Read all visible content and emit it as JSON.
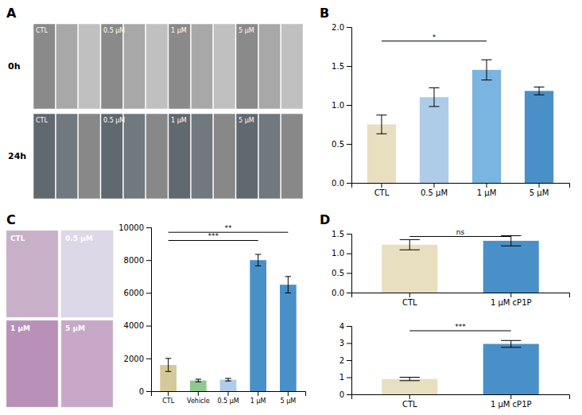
{
  "chart_data": [
    {
      "type": "image",
      "title": "A",
      "categories": [
        "CTL",
        "0.5 μM",
        "1 μM",
        "5 μM"
      ],
      "annotations": [
        "0h",
        "24h"
      ]
    },
    {
      "type": "bar",
      "title": "B",
      "categories": [
        "CTL",
        "0.5 μM",
        "1 μM",
        "5 μM"
      ],
      "values": [
        0.75,
        1.1,
        1.45,
        1.18
      ],
      "errors": [
        0.12,
        0.12,
        0.13,
        0.05
      ],
      "colors": [
        "#e8dfc0",
        "#aecce8",
        "#7ab4e0",
        "#4a90c8"
      ],
      "ylim": [
        0,
        2.0
      ],
      "yticks": [
        {
          "value": 0,
          "label": "0.0"
        },
        0.5,
        {
          "value": 1,
          "label": "1.0"
        },
        1.5,
        {
          "value": 2,
          "label": "2.0"
        }
      ],
      "annotations": [
        {
          "text": "*",
          "from": 0,
          "to": 2,
          "y": 1.82
        }
      ]
    },
    {
      "type": "image",
      "title": "C",
      "categories": [
        "CTL",
        "0.5 μM",
        "1 μM",
        "5 μM"
      ]
    },
    {
      "type": "bar",
      "categories": [
        "CTL",
        "Vehicle",
        "0.5 μM",
        "1 μM",
        "5 μM"
      ],
      "values": [
        1600,
        650,
        700,
        8000,
        6500
      ],
      "errors": [
        400,
        80,
        80,
        350,
        500
      ],
      "colors": [
        "#d4c99a",
        "#90c890",
        "#aecce8",
        "#4a90c8",
        "#4a90c8"
      ],
      "ylim": [
        0,
        10000
      ],
      "yticks": [
        0,
        2000,
        4000,
        6000,
        8000,
        10000
      ],
      "annotations": [
        {
          "text": "***",
          "from": 0,
          "to": 3,
          "y": 9200
        },
        {
          "text": "**",
          "from": 0,
          "to": 4,
          "y": 9700
        }
      ]
    },
    {
      "type": "bar",
      "title": "D",
      "categories": [
        "CTL",
        "1 μM cP1P"
      ],
      "values": [
        1.22,
        1.32
      ],
      "errors": [
        0.13,
        0.13
      ],
      "colors": [
        "#e8dfc0",
        "#4a90c8"
      ],
      "ylim": [
        0,
        1.5
      ],
      "yticks": [
        {
          "value": 0,
          "label": "0.0"
        },
        0.5,
        {
          "value": 1,
          "label": "1.0"
        },
        1.5
      ],
      "annotations": [
        {
          "text": "ns",
          "from": 0,
          "to": 1,
          "y": 1.43
        }
      ]
    },
    {
      "type": "bar",
      "categories": [
        "CTL",
        "1 μM cP1P"
      ],
      "values": [
        0.9,
        2.95
      ],
      "errors": [
        0.1,
        0.2
      ],
      "colors": [
        "#e8dfc0",
        "#4a90c8"
      ],
      "ylim": [
        0,
        4
      ],
      "yticks": [
        0,
        1,
        2,
        3,
        4
      ],
      "annotations": [
        {
          "text": "***",
          "from": 0,
          "to": 1,
          "y": 3.72
        }
      ]
    }
  ]
}
